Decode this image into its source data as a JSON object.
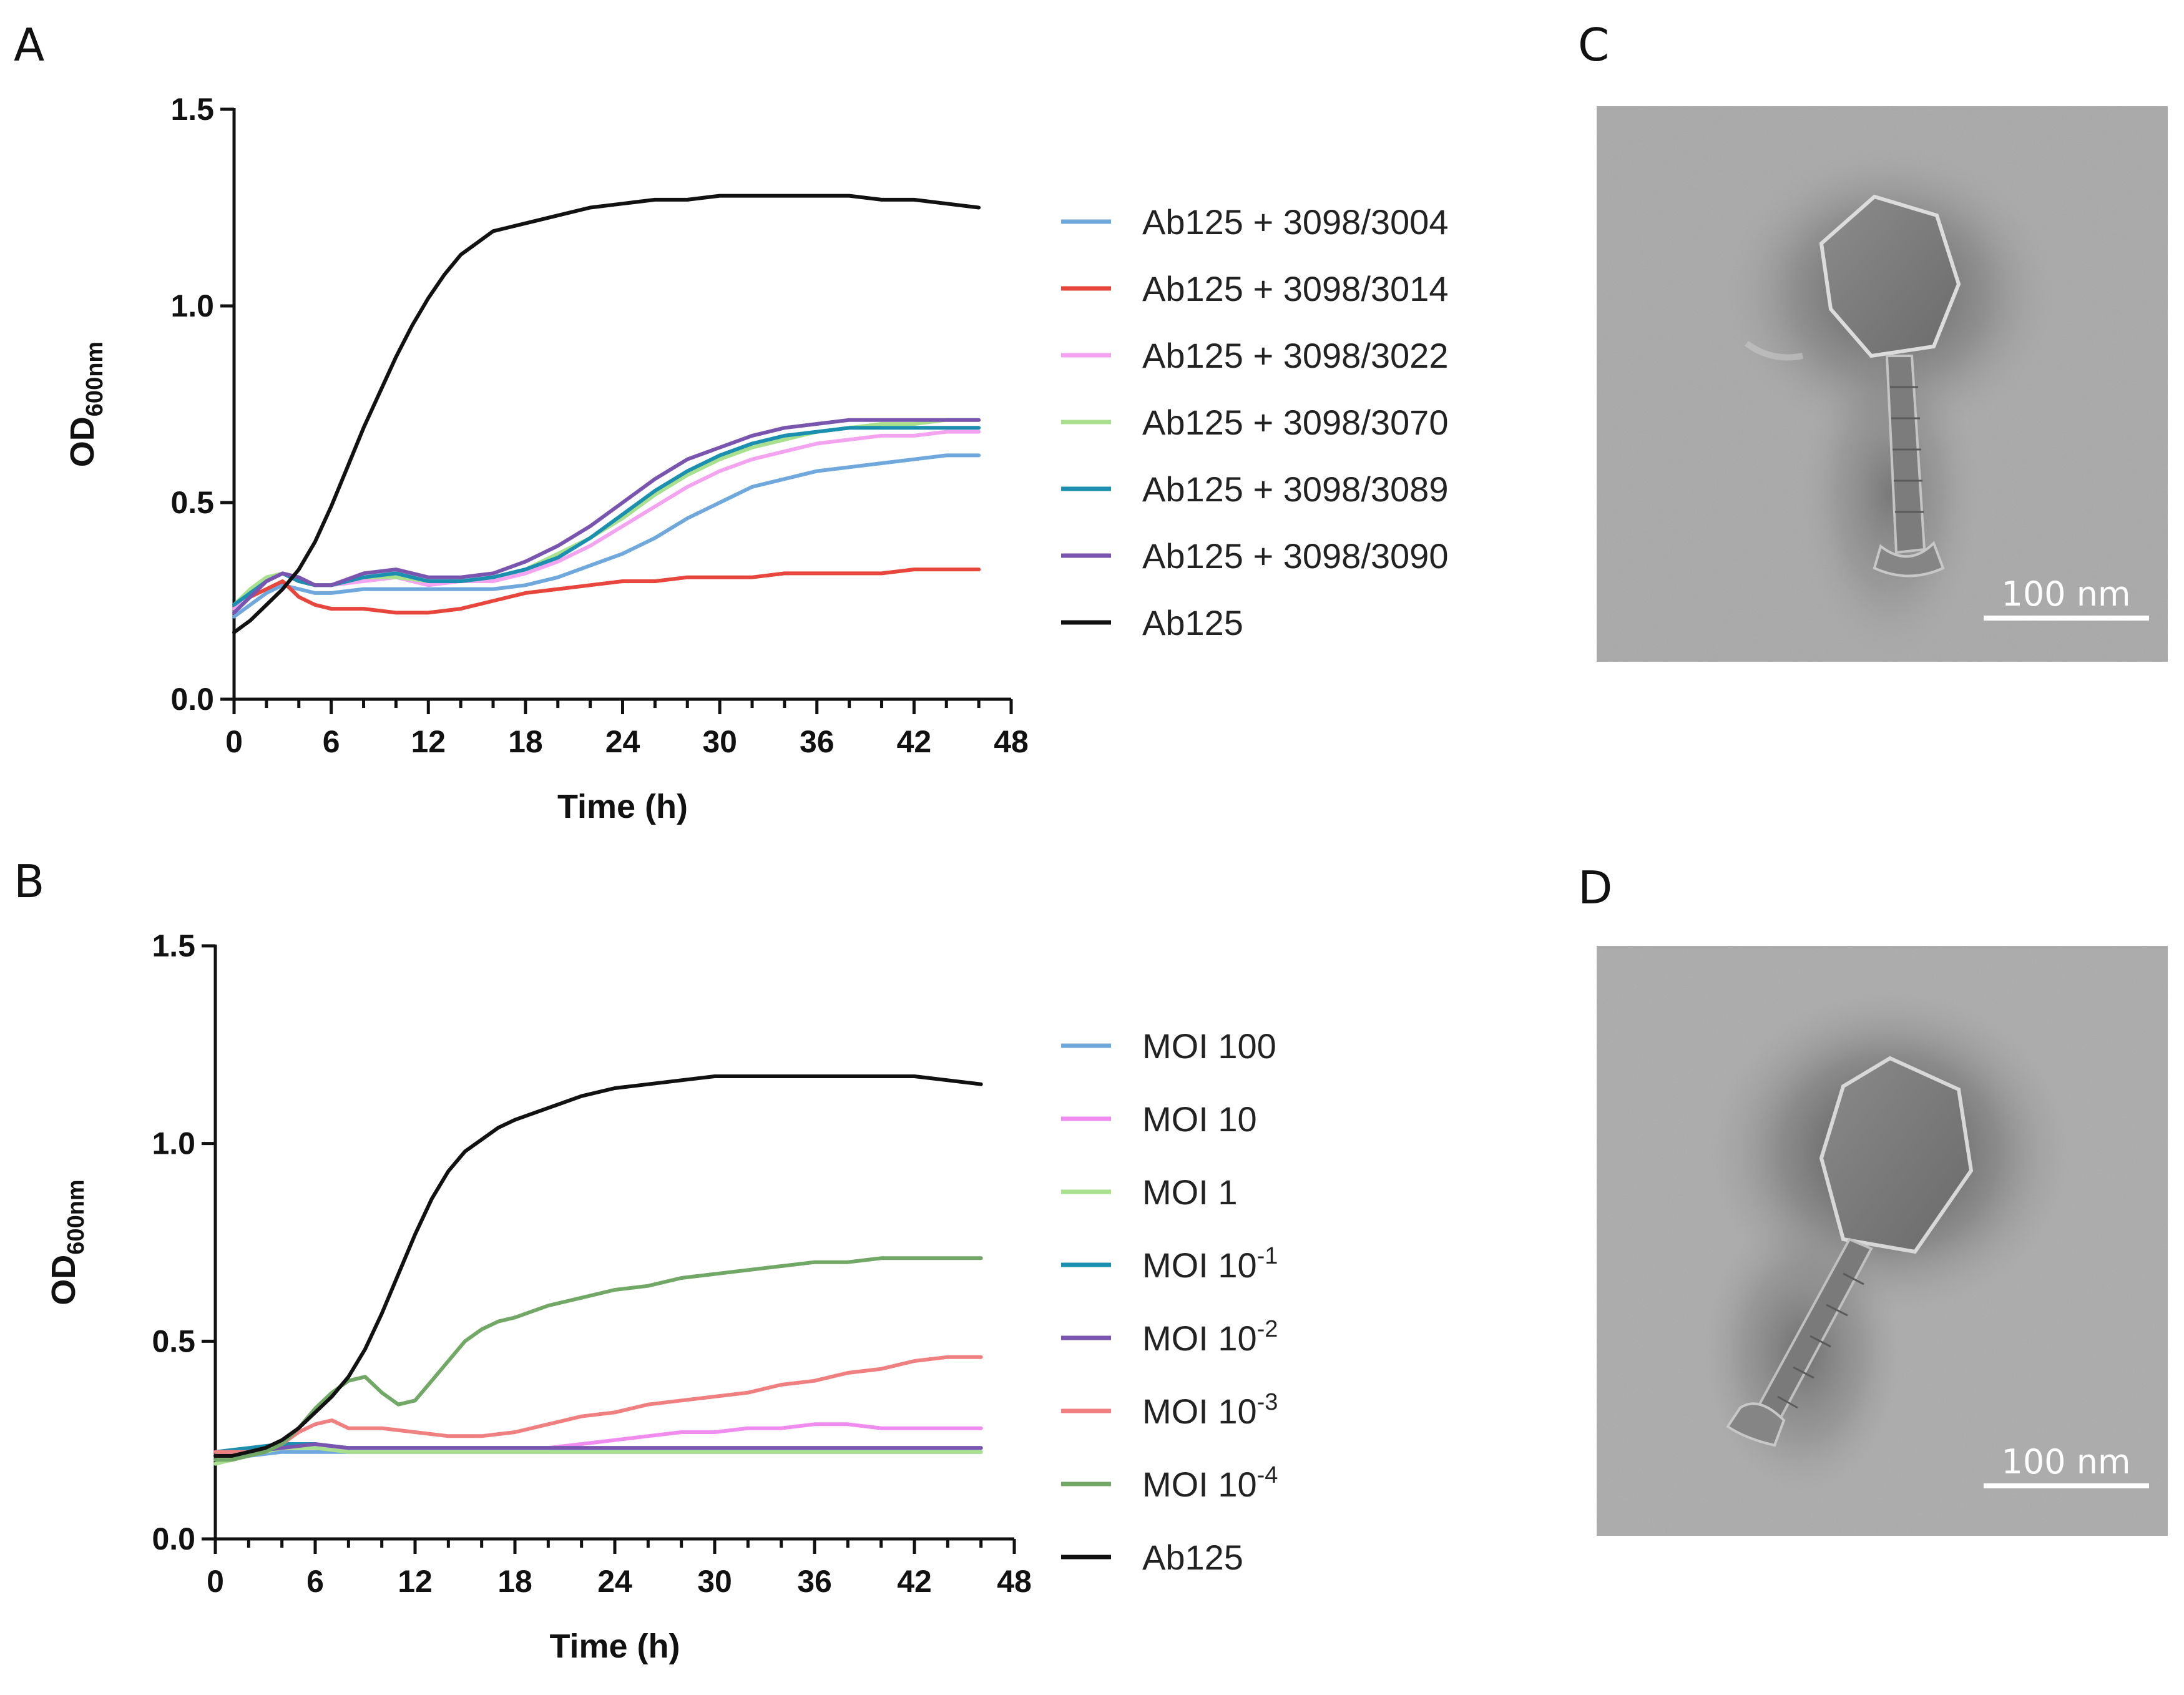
{
  "panels": {
    "A": "A",
    "B": "B",
    "C": "C",
    "D": "D"
  },
  "chart_data": [
    {
      "type": "line",
      "panel": "A",
      "xlabel": "Time (h)",
      "ylabel": {
        "main": "OD",
        "sub": "600nm"
      },
      "xlim": [
        0,
        48
      ],
      "ylim": [
        0,
        1.5
      ],
      "xticks": [
        0,
        6,
        12,
        18,
        24,
        30,
        36,
        42,
        48
      ],
      "yticks": [
        0.0,
        0.5,
        1.0,
        1.5
      ],
      "ytick_labels": [
        "0.0",
        "0.5",
        "1.0",
        "1.5"
      ],
      "legend_position": "right",
      "series": [
        {
          "name": "Ab125 + 3098/3004",
          "color": "#6fa8dc",
          "x": [
            0,
            1,
            2,
            3,
            4,
            5,
            6,
            8,
            10,
            12,
            14,
            16,
            18,
            20,
            22,
            24,
            26,
            28,
            30,
            32,
            34,
            36,
            38,
            40,
            42,
            44,
            46
          ],
          "y": [
            0.21,
            0.24,
            0.27,
            0.29,
            0.28,
            0.27,
            0.27,
            0.28,
            0.28,
            0.28,
            0.28,
            0.28,
            0.29,
            0.31,
            0.34,
            0.37,
            0.41,
            0.46,
            0.5,
            0.54,
            0.56,
            0.58,
            0.59,
            0.6,
            0.61,
            0.62,
            0.62
          ]
        },
        {
          "name": "Ab125 + 3098/3014",
          "color": "#e8453c",
          "x": [
            0,
            1,
            2,
            3,
            4,
            5,
            6,
            8,
            10,
            12,
            14,
            16,
            18,
            20,
            22,
            24,
            26,
            28,
            30,
            32,
            34,
            36,
            38,
            40,
            42,
            44,
            46
          ],
          "y": [
            0.23,
            0.26,
            0.28,
            0.3,
            0.26,
            0.24,
            0.23,
            0.23,
            0.22,
            0.22,
            0.23,
            0.25,
            0.27,
            0.28,
            0.29,
            0.3,
            0.3,
            0.31,
            0.31,
            0.31,
            0.32,
            0.32,
            0.32,
            0.32,
            0.33,
            0.33,
            0.33
          ]
        },
        {
          "name": "Ab125 + 3098/3022",
          "color": "#f4a3f0",
          "x": [
            0,
            1,
            2,
            3,
            4,
            5,
            6,
            8,
            10,
            12,
            14,
            16,
            18,
            20,
            22,
            24,
            26,
            28,
            30,
            32,
            34,
            36,
            38,
            40,
            42,
            44,
            46
          ],
          "y": [
            0.23,
            0.27,
            0.3,
            0.32,
            0.3,
            0.29,
            0.29,
            0.3,
            0.31,
            0.29,
            0.3,
            0.3,
            0.32,
            0.35,
            0.39,
            0.44,
            0.49,
            0.54,
            0.58,
            0.61,
            0.63,
            0.65,
            0.66,
            0.67,
            0.67,
            0.68,
            0.68
          ]
        },
        {
          "name": "Ab125 + 3098/3070",
          "color": "#a8e08e",
          "x": [
            0,
            1,
            2,
            3,
            4,
            5,
            6,
            8,
            10,
            12,
            14,
            16,
            18,
            20,
            22,
            24,
            26,
            28,
            30,
            32,
            34,
            36,
            38,
            40,
            42,
            44,
            46
          ],
          "y": [
            0.24,
            0.28,
            0.31,
            0.32,
            0.3,
            0.29,
            0.29,
            0.31,
            0.31,
            0.3,
            0.3,
            0.31,
            0.33,
            0.37,
            0.41,
            0.46,
            0.52,
            0.57,
            0.61,
            0.64,
            0.66,
            0.68,
            0.69,
            0.7,
            0.7,
            0.71,
            0.71
          ]
        },
        {
          "name": "Ab125 + 3098/3089",
          "color": "#1a8fb0",
          "x": [
            0,
            1,
            2,
            3,
            4,
            5,
            6,
            8,
            10,
            12,
            14,
            16,
            18,
            20,
            22,
            24,
            26,
            28,
            30,
            32,
            34,
            36,
            38,
            40,
            42,
            44,
            46
          ],
          "y": [
            0.24,
            0.27,
            0.3,
            0.32,
            0.3,
            0.29,
            0.29,
            0.31,
            0.32,
            0.3,
            0.3,
            0.31,
            0.33,
            0.36,
            0.41,
            0.47,
            0.53,
            0.58,
            0.62,
            0.65,
            0.67,
            0.68,
            0.69,
            0.69,
            0.69,
            0.69,
            0.69
          ]
        },
        {
          "name": "Ab125 + 3098/3090",
          "color": "#7a55b0",
          "x": [
            0,
            1,
            2,
            3,
            4,
            5,
            6,
            8,
            10,
            12,
            14,
            16,
            18,
            20,
            22,
            24,
            26,
            28,
            30,
            32,
            34,
            36,
            38,
            40,
            42,
            44,
            46
          ],
          "y": [
            0.22,
            0.26,
            0.3,
            0.32,
            0.31,
            0.29,
            0.29,
            0.32,
            0.33,
            0.31,
            0.31,
            0.32,
            0.35,
            0.39,
            0.44,
            0.5,
            0.56,
            0.61,
            0.64,
            0.67,
            0.69,
            0.7,
            0.71,
            0.71,
            0.71,
            0.71,
            0.71
          ]
        },
        {
          "name": "Ab125",
          "color": "#111111",
          "x": [
            0,
            1,
            2,
            3,
            4,
            5,
            6,
            7,
            8,
            9,
            10,
            11,
            12,
            13,
            14,
            15,
            16,
            17,
            18,
            20,
            22,
            24,
            26,
            28,
            30,
            32,
            34,
            36,
            38,
            40,
            42,
            44,
            46
          ],
          "y": [
            0.17,
            0.2,
            0.24,
            0.28,
            0.33,
            0.4,
            0.49,
            0.59,
            0.69,
            0.78,
            0.87,
            0.95,
            1.02,
            1.08,
            1.13,
            1.16,
            1.19,
            1.2,
            1.21,
            1.23,
            1.25,
            1.26,
            1.27,
            1.27,
            1.28,
            1.28,
            1.28,
            1.28,
            1.28,
            1.27,
            1.27,
            1.26,
            1.25
          ]
        }
      ]
    },
    {
      "type": "line",
      "panel": "B",
      "xlabel": "Time (h)",
      "ylabel": {
        "main": "OD",
        "sub": "600nm"
      },
      "xlim": [
        0,
        48
      ],
      "ylim": [
        0,
        1.5
      ],
      "xticks": [
        0,
        6,
        12,
        18,
        24,
        30,
        36,
        42,
        48
      ],
      "yticks": [
        0.0,
        0.5,
        1.0,
        1.5
      ],
      "ytick_labels": [
        "0.0",
        "0.5",
        "1.0",
        "1.5"
      ],
      "legend_position": "right",
      "series": [
        {
          "name": "MOI 100",
          "label_base": "MOI 100",
          "label_sup": "",
          "color": "#6fa8dc",
          "x": [
            0,
            2,
            4,
            6,
            8,
            10,
            12,
            14,
            16,
            18,
            20,
            22,
            24,
            26,
            28,
            30,
            32,
            34,
            36,
            38,
            40,
            42,
            44,
            46
          ],
          "y": [
            0.21,
            0.21,
            0.22,
            0.22,
            0.22,
            0.22,
            0.22,
            0.22,
            0.22,
            0.22,
            0.22,
            0.22,
            0.22,
            0.22,
            0.22,
            0.22,
            0.22,
            0.22,
            0.22,
            0.22,
            0.22,
            0.22,
            0.22,
            0.22
          ]
        },
        {
          "name": "MOI 10",
          "label_base": "MOI 10",
          "label_sup": "",
          "color": "#f08cf0",
          "x": [
            0,
            2,
            4,
            6,
            8,
            10,
            12,
            14,
            16,
            18,
            20,
            22,
            24,
            26,
            28,
            30,
            32,
            34,
            36,
            38,
            40,
            42,
            44,
            46
          ],
          "y": [
            0.21,
            0.22,
            0.23,
            0.23,
            0.23,
            0.23,
            0.23,
            0.23,
            0.23,
            0.23,
            0.23,
            0.24,
            0.25,
            0.26,
            0.27,
            0.27,
            0.28,
            0.28,
            0.29,
            0.29,
            0.28,
            0.28,
            0.28,
            0.28
          ]
        },
        {
          "name": "MOI 1",
          "label_base": "MOI 1",
          "label_sup": "",
          "color": "#a8e08e",
          "x": [
            0,
            2,
            4,
            6,
            8,
            10,
            12,
            14,
            16,
            18,
            20,
            22,
            24,
            26,
            28,
            30,
            32,
            34,
            36,
            38,
            40,
            42,
            44,
            46
          ],
          "y": [
            0.19,
            0.21,
            0.23,
            0.23,
            0.22,
            0.22,
            0.22,
            0.22,
            0.22,
            0.22,
            0.22,
            0.22,
            0.22,
            0.22,
            0.22,
            0.22,
            0.22,
            0.22,
            0.22,
            0.22,
            0.22,
            0.22,
            0.22,
            0.22
          ]
        },
        {
          "name": "MOI 10-1",
          "label_base": "MOI 10",
          "label_sup": "-1",
          "color": "#1a8fb0",
          "x": [
            0,
            2,
            4,
            6,
            8,
            10,
            12,
            14,
            16,
            18,
            20,
            22,
            24,
            26,
            28,
            30,
            32,
            34,
            36,
            38,
            40,
            42,
            44,
            46
          ],
          "y": [
            0.22,
            0.23,
            0.24,
            0.24,
            0.23,
            0.23,
            0.23,
            0.23,
            0.23,
            0.23,
            0.23,
            0.23,
            0.23,
            0.23,
            0.23,
            0.23,
            0.23,
            0.23,
            0.23,
            0.23,
            0.23,
            0.23,
            0.23,
            0.23
          ]
        },
        {
          "name": "MOI 10-2",
          "label_base": "MOI 10",
          "label_sup": "-2",
          "color": "#7a55b0",
          "x": [
            0,
            2,
            4,
            6,
            8,
            10,
            12,
            14,
            16,
            18,
            20,
            22,
            24,
            26,
            28,
            30,
            32,
            34,
            36,
            38,
            40,
            42,
            44,
            46
          ],
          "y": [
            0.22,
            0.22,
            0.23,
            0.24,
            0.23,
            0.23,
            0.23,
            0.23,
            0.23,
            0.23,
            0.23,
            0.23,
            0.23,
            0.23,
            0.23,
            0.23,
            0.23,
            0.23,
            0.23,
            0.23,
            0.23,
            0.23,
            0.23,
            0.23
          ]
        },
        {
          "name": "MOI 10-3",
          "label_base": "MOI 10",
          "label_sup": "-3",
          "color": "#f07f7f",
          "x": [
            0,
            2,
            4,
            5,
            6,
            7,
            8,
            10,
            12,
            14,
            16,
            18,
            20,
            22,
            24,
            26,
            28,
            30,
            32,
            34,
            36,
            38,
            40,
            42,
            44,
            46
          ],
          "y": [
            0.22,
            0.22,
            0.24,
            0.27,
            0.29,
            0.3,
            0.28,
            0.28,
            0.27,
            0.26,
            0.26,
            0.27,
            0.29,
            0.31,
            0.32,
            0.34,
            0.35,
            0.36,
            0.37,
            0.39,
            0.4,
            0.42,
            0.43,
            0.45,
            0.46,
            0.46
          ]
        },
        {
          "name": "MOI 10-4",
          "label_base": "MOI 10",
          "label_sup": "-4",
          "color": "#72a866",
          "x": [
            0,
            1,
            2,
            3,
            4,
            5,
            6,
            7,
            8,
            9,
            10,
            11,
            12,
            13,
            14,
            15,
            16,
            17,
            18,
            20,
            22,
            24,
            26,
            28,
            30,
            32,
            34,
            36,
            38,
            40,
            42,
            44,
            46
          ],
          "y": [
            0.2,
            0.2,
            0.21,
            0.22,
            0.24,
            0.28,
            0.33,
            0.37,
            0.4,
            0.41,
            0.37,
            0.34,
            0.35,
            0.4,
            0.45,
            0.5,
            0.53,
            0.55,
            0.56,
            0.59,
            0.61,
            0.63,
            0.64,
            0.66,
            0.67,
            0.68,
            0.69,
            0.7,
            0.7,
            0.71,
            0.71,
            0.71,
            0.71
          ]
        },
        {
          "name": "Ab125",
          "label_base": "Ab125",
          "label_sup": "",
          "color": "#111111",
          "x": [
            0,
            1,
            2,
            3,
            4,
            5,
            6,
            7,
            8,
            9,
            10,
            11,
            12,
            13,
            14,
            15,
            16,
            17,
            18,
            20,
            22,
            24,
            26,
            28,
            30,
            32,
            34,
            36,
            38,
            40,
            42,
            44,
            46
          ],
          "y": [
            0.21,
            0.21,
            0.22,
            0.23,
            0.25,
            0.28,
            0.32,
            0.36,
            0.41,
            0.48,
            0.57,
            0.67,
            0.77,
            0.86,
            0.93,
            0.98,
            1.01,
            1.04,
            1.06,
            1.09,
            1.12,
            1.14,
            1.15,
            1.16,
            1.17,
            1.17,
            1.17,
            1.17,
            1.17,
            1.17,
            1.17,
            1.16,
            1.15
          ]
        }
      ]
    }
  ],
  "micrographs": {
    "C": {
      "scalebar_label": "100 nm"
    },
    "D": {
      "scalebar_label": "100 nm"
    }
  }
}
